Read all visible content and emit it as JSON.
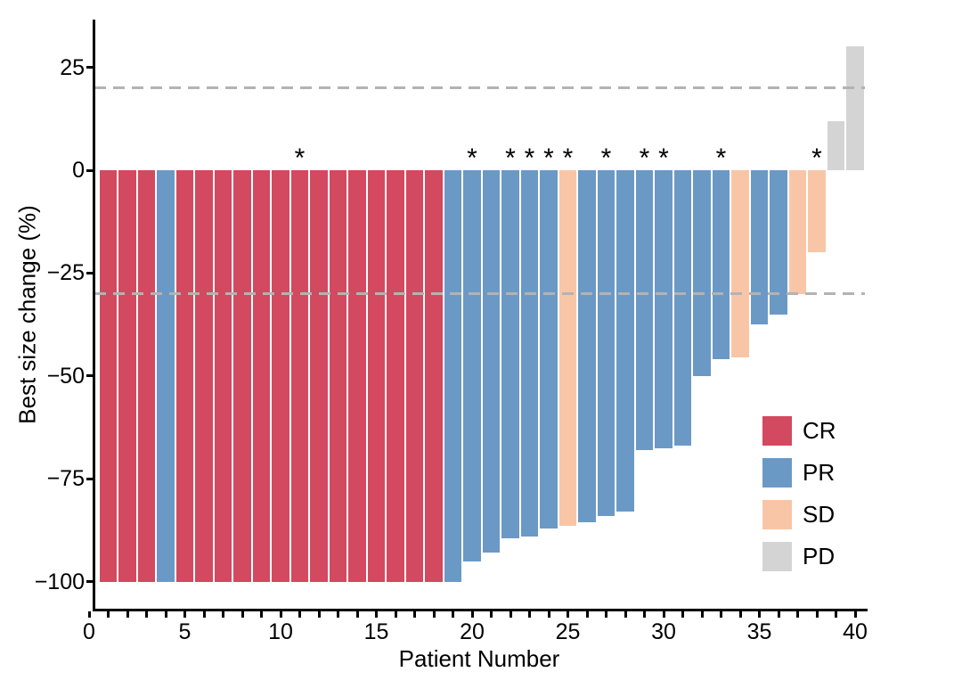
{
  "colors": {
    "CR": "#d3495f",
    "PR": "#6b99c6",
    "SD": "#f8c6a7",
    "PD": "#d4d4d4",
    "reference_line": "#b3b3b3",
    "axis": "#000000",
    "text": "#000000"
  },
  "chart_data": {
    "type": "bar",
    "title": "",
    "xlabel": "Patient Number",
    "ylabel": "Best size change (%)",
    "xlim": [
      0,
      40.7
    ],
    "ylim": [
      -106.8,
      36.6
    ],
    "grid": "off",
    "legend_position": "right-middle",
    "annotation_symbol": "*",
    "x_ticks": {
      "minor_interval": 1,
      "major": [
        {
          "value": 0,
          "label": "0"
        },
        {
          "value": 5,
          "label": "5"
        },
        {
          "value": 10,
          "label": "10"
        },
        {
          "value": 15,
          "label": "15"
        },
        {
          "value": 20,
          "label": "20"
        },
        {
          "value": 25,
          "label": "25"
        },
        {
          "value": 30,
          "label": "30"
        },
        {
          "value": 35,
          "label": "35"
        },
        {
          "value": 40,
          "label": "40"
        }
      ]
    },
    "y_ticks": [
      {
        "value": 25,
        "label": "25"
      },
      {
        "value": 0,
        "label": "0"
      },
      {
        "value": -25,
        "label": "−25"
      },
      {
        "value": -50,
        "label": "−50"
      },
      {
        "value": -75,
        "label": "−75"
      },
      {
        "value": -100,
        "label": "−100"
      }
    ],
    "reference_lines": [
      {
        "value": 20,
        "style": "dashed"
      },
      {
        "value": -30,
        "style": "dashed"
      }
    ],
    "legend": [
      {
        "label": "CR",
        "response": "CR"
      },
      {
        "label": "PR",
        "response": "PR"
      },
      {
        "label": "SD",
        "response": "SD"
      },
      {
        "label": "PD",
        "response": "PD"
      }
    ],
    "patients": [
      {
        "patient": 1,
        "value": -100,
        "response": "CR",
        "asterisk": false
      },
      {
        "patient": 2,
        "value": -100,
        "response": "CR",
        "asterisk": false
      },
      {
        "patient": 3,
        "value": -100,
        "response": "CR",
        "asterisk": false
      },
      {
        "patient": 4,
        "value": -100,
        "response": "PR",
        "asterisk": false
      },
      {
        "patient": 5,
        "value": -100,
        "response": "CR",
        "asterisk": false
      },
      {
        "patient": 6,
        "value": -100,
        "response": "CR",
        "asterisk": false
      },
      {
        "patient": 7,
        "value": -100,
        "response": "CR",
        "asterisk": false
      },
      {
        "patient": 8,
        "value": -100,
        "response": "CR",
        "asterisk": false
      },
      {
        "patient": 9,
        "value": -100,
        "response": "CR",
        "asterisk": false
      },
      {
        "patient": 10,
        "value": -100,
        "response": "CR",
        "asterisk": false
      },
      {
        "patient": 11,
        "value": -100,
        "response": "CR",
        "asterisk": true
      },
      {
        "patient": 12,
        "value": -100,
        "response": "CR",
        "asterisk": false
      },
      {
        "patient": 13,
        "value": -100,
        "response": "CR",
        "asterisk": false
      },
      {
        "patient": 14,
        "value": -100,
        "response": "CR",
        "asterisk": false
      },
      {
        "patient": 15,
        "value": -100,
        "response": "CR",
        "asterisk": false
      },
      {
        "patient": 16,
        "value": -100,
        "response": "CR",
        "asterisk": false
      },
      {
        "patient": 17,
        "value": -100,
        "response": "CR",
        "asterisk": false
      },
      {
        "patient": 18,
        "value": -100,
        "response": "CR",
        "asterisk": false
      },
      {
        "patient": 19,
        "value": -100,
        "response": "PR",
        "asterisk": false
      },
      {
        "patient": 20,
        "value": -95,
        "response": "PR",
        "asterisk": true
      },
      {
        "patient": 21,
        "value": -93,
        "response": "PR",
        "asterisk": false
      },
      {
        "patient": 22,
        "value": -89.5,
        "response": "PR",
        "asterisk": true
      },
      {
        "patient": 23,
        "value": -89,
        "response": "PR",
        "asterisk": true
      },
      {
        "patient": 24,
        "value": -87,
        "response": "PR",
        "asterisk": true
      },
      {
        "patient": 25,
        "value": -86.5,
        "response": "SD",
        "asterisk": true
      },
      {
        "patient": 26,
        "value": -85.5,
        "response": "PR",
        "asterisk": false
      },
      {
        "patient": 27,
        "value": -84,
        "response": "PR",
        "asterisk": true
      },
      {
        "patient": 28,
        "value": -83,
        "response": "PR",
        "asterisk": false
      },
      {
        "patient": 29,
        "value": -68,
        "response": "PR",
        "asterisk": true
      },
      {
        "patient": 30,
        "value": -67.5,
        "response": "PR",
        "asterisk": true
      },
      {
        "patient": 31,
        "value": -67,
        "response": "PR",
        "asterisk": false
      },
      {
        "patient": 32,
        "value": -50,
        "response": "PR",
        "asterisk": false
      },
      {
        "patient": 33,
        "value": -46,
        "response": "PR",
        "asterisk": true
      },
      {
        "patient": 34,
        "value": -45.5,
        "response": "SD",
        "asterisk": false
      },
      {
        "patient": 35,
        "value": -37.5,
        "response": "PR",
        "asterisk": false
      },
      {
        "patient": 36,
        "value": -35,
        "response": "PR",
        "asterisk": false
      },
      {
        "patient": 37,
        "value": -30,
        "response": "SD",
        "asterisk": false
      },
      {
        "patient": 38,
        "value": -20,
        "response": "SD",
        "asterisk": true
      },
      {
        "patient": 39,
        "value": 12,
        "response": "PD",
        "asterisk": false
      },
      {
        "patient": 40,
        "value": 30,
        "response": "PD",
        "asterisk": false
      }
    ]
  }
}
